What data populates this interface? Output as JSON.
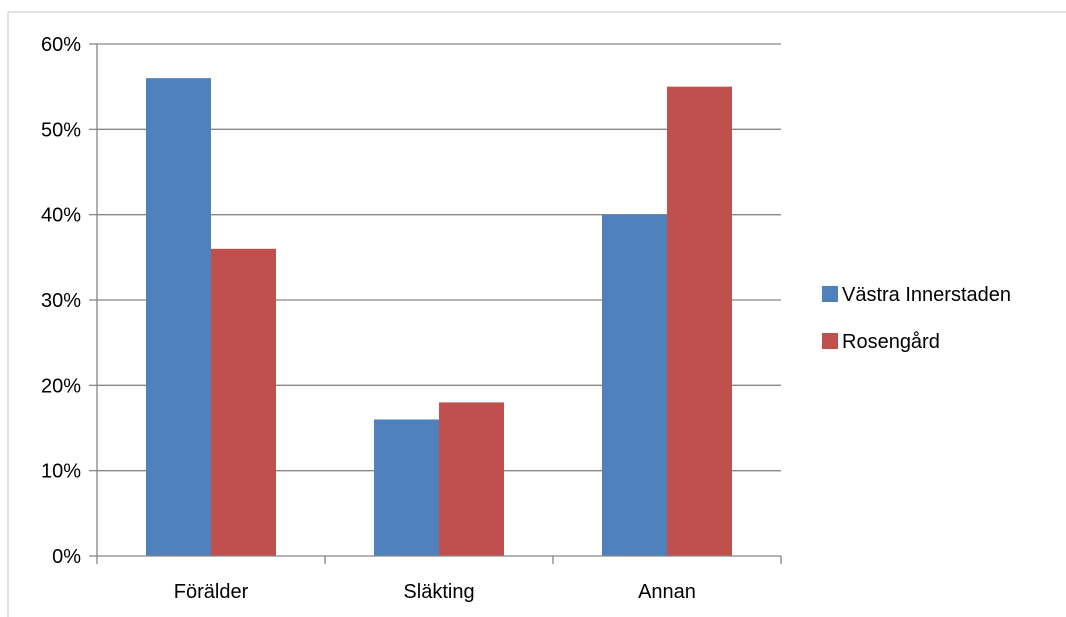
{
  "chart_data": {
    "type": "bar",
    "title": "",
    "xlabel": "",
    "ylabel": "",
    "categories": [
      "Förälder",
      "Släkting",
      "Annan"
    ],
    "series": [
      {
        "name": "Västra Innerstaden",
        "values": [
          0.56,
          0.16,
          0.4
        ],
        "color": "#4F81BD"
      },
      {
        "name": "Rosengård",
        "values": [
          0.36,
          0.18,
          0.55
        ],
        "color": "#C0504D"
      }
    ],
    "ylim": [
      0,
      0.6
    ],
    "yticks": [
      0,
      0.1,
      0.2,
      0.3,
      0.4,
      0.5,
      0.6
    ],
    "ytick_labels": [
      "0%",
      "10%",
      "20%",
      "30%",
      "40%",
      "50%",
      "60%"
    ],
    "grid": true,
    "legend_position": "right",
    "colors": {
      "gridline": "#868686",
      "axis": "#868686",
      "frame": "#D9D9D9"
    }
  }
}
